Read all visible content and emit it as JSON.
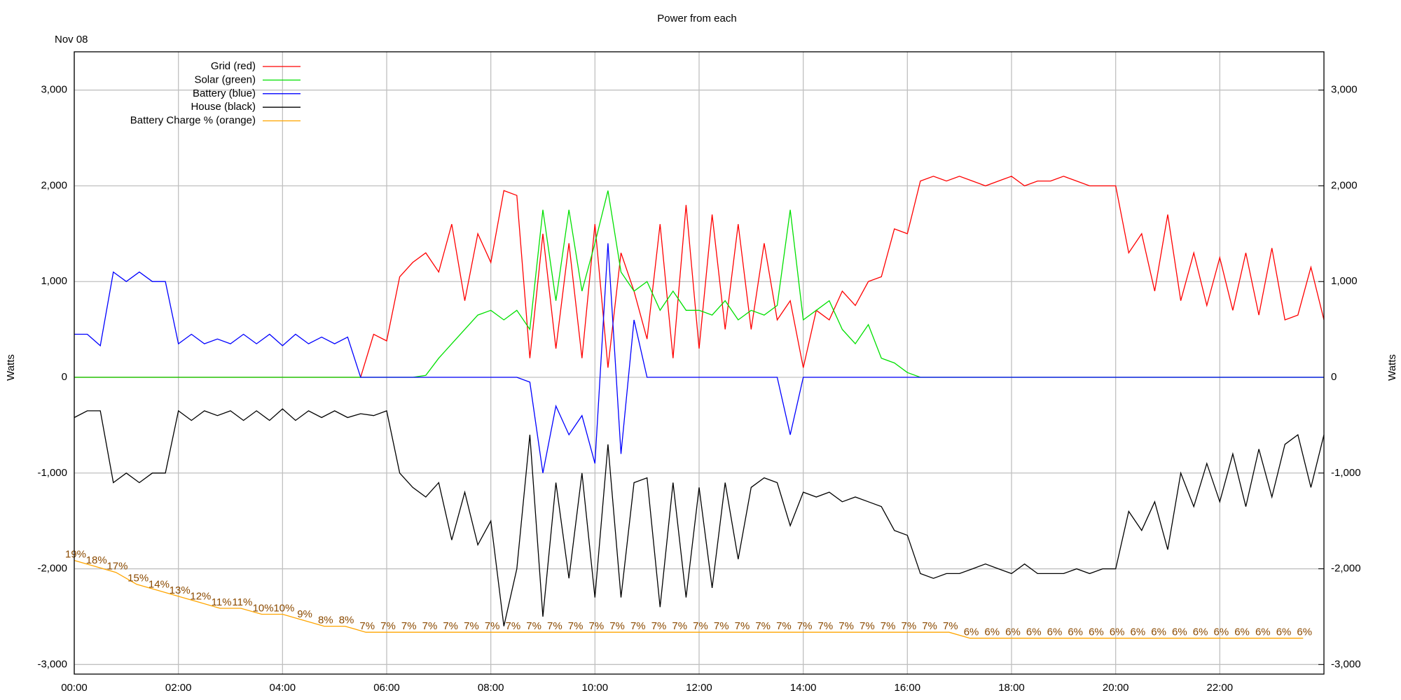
{
  "chart_data": {
    "type": "line",
    "title": "Power from each",
    "date_label": "Nov 08",
    "ylabel": "Watts",
    "y2label": "Watts",
    "legend": "top-left",
    "grid": true,
    "xlim": [
      0,
      24
    ],
    "xticks": [
      {
        "value": 0,
        "label": "00:00"
      },
      {
        "value": 2,
        "label": "02:00"
      },
      {
        "value": 4,
        "label": "04:00"
      },
      {
        "value": 6,
        "label": "06:00"
      },
      {
        "value": 8,
        "label": "08:00"
      },
      {
        "value": 10,
        "label": "10:00"
      },
      {
        "value": 12,
        "label": "12:00"
      },
      {
        "value": 14,
        "label": "14:00"
      },
      {
        "value": 16,
        "label": "16:00"
      },
      {
        "value": 18,
        "label": "18:00"
      },
      {
        "value": 20,
        "label": "20:00"
      },
      {
        "value": 22,
        "label": "22:00"
      }
    ],
    "ylim": [
      -3100,
      3400
    ],
    "yticks": [
      {
        "value": -3000,
        "label": "-3,000"
      },
      {
        "value": -2000,
        "label": "-2,000"
      },
      {
        "value": -1000,
        "label": "-1,000"
      },
      0,
      {
        "value": 1000,
        "label": "1,000"
      },
      {
        "value": 2000,
        "label": "2,000"
      },
      {
        "value": 3000,
        "label": "3,000"
      }
    ],
    "y2lim": [
      -3100,
      3400
    ],
    "y2ticks": [
      {
        "value": -3000,
        "label": "-3,000"
      },
      {
        "value": -2000,
        "label": "-2,000"
      },
      {
        "value": -1000,
        "label": "-1,000"
      },
      0,
      {
        "value": 1000,
        "label": "1,000"
      },
      {
        "value": 2000,
        "label": "2,000"
      },
      {
        "value": 3000,
        "label": "3,000"
      }
    ],
    "y3lim": [
      0,
      104
    ],
    "x": [
      0,
      0.25,
      0.5,
      0.75,
      1,
      1.25,
      1.5,
      1.75,
      2,
      2.25,
      2.5,
      2.75,
      3,
      3.25,
      3.5,
      3.75,
      4,
      4.25,
      4.5,
      4.75,
      5,
      5.25,
      5.5,
      5.75,
      6,
      6.25,
      6.5,
      6.75,
      7,
      7.25,
      7.5,
      7.75,
      8,
      8.25,
      8.5,
      8.75,
      9,
      9.25,
      9.5,
      9.75,
      10,
      10.25,
      10.5,
      10.75,
      11,
      11.25,
      11.5,
      11.75,
      12,
      12.25,
      12.5,
      12.75,
      13,
      13.25,
      13.5,
      13.75,
      14,
      14.25,
      14.5,
      14.75,
      15,
      15.25,
      15.5,
      15.75,
      16,
      16.25,
      16.5,
      16.75,
      17,
      17.25,
      17.5,
      17.75,
      18,
      18.25,
      18.5,
      18.75,
      19,
      19.25,
      19.5,
      19.75,
      20,
      20.25,
      20.5,
      20.75,
      21,
      21.25,
      21.5,
      21.75,
      22,
      22.25,
      22.5,
      22.75,
      23,
      23.25,
      23.5,
      23.75,
      24
    ],
    "series": [
      {
        "name": "Grid (red)",
        "color": "#ff0000",
        "values": [
          0,
          0,
          0,
          0,
          0,
          0,
          0,
          0,
          0,
          0,
          0,
          0,
          0,
          0,
          0,
          0,
          0,
          0,
          0,
          0,
          0,
          0,
          0,
          450,
          380,
          1050,
          1200,
          1300,
          1100,
          1600,
          800,
          1500,
          1200,
          1950,
          1900,
          200,
          1500,
          300,
          1400,
          200,
          1600,
          100,
          1300,
          900,
          400,
          1600,
          200,
          1800,
          300,
          1700,
          500,
          1600,
          500,
          1400,
          600,
          800,
          100,
          700,
          600,
          900,
          750,
          1000,
          1050,
          1550,
          1500,
          2050,
          2100,
          2050,
          2100,
          2050,
          2000,
          2050,
          2100,
          2000,
          2050,
          2050,
          2100,
          2050,
          2000,
          2000,
          2000,
          1300,
          1500,
          900,
          1700,
          800,
          1300,
          750,
          1250,
          700,
          1300,
          650,
          1350,
          600,
          650,
          1150,
          600
        ]
      },
      {
        "name": "Solar (green)",
        "color": "#00e000",
        "values": [
          0,
          0,
          0,
          0,
          0,
          0,
          0,
          0,
          0,
          0,
          0,
          0,
          0,
          0,
          0,
          0,
          0,
          0,
          0,
          0,
          0,
          0,
          0,
          0,
          0,
          0,
          0,
          20,
          200,
          350,
          500,
          650,
          700,
          600,
          700,
          500,
          1750,
          800,
          1750,
          900,
          1400,
          1950,
          1100,
          900,
          1000,
          700,
          900,
          700,
          700,
          650,
          800,
          600,
          700,
          650,
          750,
          1750,
          600,
          700,
          800,
          500,
          350,
          550,
          200,
          150,
          50,
          0,
          0,
          0,
          0,
          0,
          0,
          0,
          0,
          0,
          0,
          0,
          0,
          0,
          0,
          0,
          0,
          0,
          0,
          0,
          0,
          0,
          0,
          0,
          0,
          0,
          0,
          0,
          0,
          0,
          0,
          0,
          0
        ]
      },
      {
        "name": "Battery (blue)",
        "color": "#0000ff",
        "values": [
          450,
          450,
          330,
          1100,
          1000,
          1100,
          1000,
          1000,
          350,
          450,
          350,
          400,
          350,
          450,
          350,
          450,
          330,
          450,
          350,
          420,
          350,
          420,
          0,
          0,
          0,
          0,
          0,
          0,
          0,
          0,
          0,
          0,
          0,
          0,
          0,
          -50,
          -1000,
          -300,
          -600,
          -400,
          -900,
          1400,
          -800,
          600,
          0,
          0,
          0,
          0,
          0,
          0,
          0,
          0,
          0,
          0,
          0,
          -600,
          0,
          0,
          0,
          0,
          0,
          0,
          0,
          0,
          0,
          0,
          0,
          0,
          0,
          0,
          0,
          0,
          0,
          0,
          0,
          0,
          0,
          0,
          0,
          0,
          0,
          0,
          0,
          0,
          0,
          0,
          0,
          0,
          0,
          0,
          0,
          0,
          0,
          0,
          0,
          0,
          0
        ]
      },
      {
        "name": "House (black)",
        "color": "#000000",
        "values": [
          -420,
          -350,
          -350,
          -1100,
          -1000,
          -1100,
          -1000,
          -1000,
          -350,
          -450,
          -350,
          -400,
          -350,
          -450,
          -350,
          -450,
          -330,
          -450,
          -350,
          -420,
          -350,
          -420,
          -380,
          -400,
          -350,
          -1000,
          -1150,
          -1250,
          -1100,
          -1700,
          -1200,
          -1750,
          -1500,
          -2600,
          -2000,
          -600,
          -2500,
          -1100,
          -2100,
          -1000,
          -2300,
          -700,
          -2300,
          -1100,
          -1050,
          -2400,
          -1100,
          -2300,
          -1150,
          -2200,
          -1100,
          -1900,
          -1150,
          -1050,
          -1100,
          -1550,
          -1200,
          -1250,
          -1200,
          -1300,
          -1250,
          -1300,
          -1350,
          -1600,
          -1650,
          -2050,
          -2100,
          -2050,
          -2050,
          -2000,
          -1950,
          -2000,
          -2050,
          -1950,
          -2050,
          -2050,
          -2050,
          -2000,
          -2050,
          -2000,
          -2000,
          -1400,
          -1600,
          -1300,
          -1800,
          -1000,
          -1350,
          -900,
          -1300,
          -800,
          -1350,
          -750,
          -1250,
          -700,
          -600,
          -1150,
          -600
        ]
      },
      {
        "name": "Battery Charge % (orange)",
        "color": "#ffa500",
        "axis": "y3",
        "x": [
          0,
          0.4,
          0.8,
          1.2,
          1.6,
          2,
          2.4,
          2.8,
          3.2,
          3.6,
          4,
          4.4,
          4.8,
          5.2,
          5.6,
          6,
          6.4,
          6.8,
          7.2,
          7.6,
          8,
          8.4,
          8.8,
          9.2,
          9.6,
          10,
          10.4,
          10.8,
          11.2,
          11.6,
          12,
          12.4,
          12.8,
          13.2,
          13.6,
          14,
          14.4,
          14.8,
          15.2,
          15.6,
          16,
          16.4,
          16.8,
          17.2,
          17.6,
          18,
          18.4,
          18.8,
          19.2,
          19.6,
          20,
          20.4,
          20.8,
          21.2,
          21.6,
          22,
          22.4,
          22.8,
          23.2,
          23.6
        ],
        "values": [
          19,
          18,
          17,
          15,
          14,
          13,
          12,
          11,
          11,
          10,
          10,
          9,
          8,
          8,
          7,
          7,
          7,
          7,
          7,
          7,
          7,
          7,
          7,
          7,
          7,
          7,
          7,
          7,
          7,
          7,
          7,
          7,
          7,
          7,
          7,
          7,
          7,
          7,
          7,
          7,
          7,
          7,
          7,
          6,
          6,
          6,
          6,
          6,
          6,
          6,
          6,
          6,
          6,
          6,
          6,
          6,
          6,
          6,
          6,
          6
        ],
        "value_labels": [
          "19%",
          "18%",
          "17%",
          "15%",
          "14%",
          "13%",
          "12%",
          "11%",
          "11%",
          "10%",
          "10%",
          "9%",
          "8%",
          "8%",
          "7%",
          "7%",
          "7%",
          "7%",
          "7%",
          "7%",
          "7%",
          "7%",
          "7%",
          "7%",
          "7%",
          "7%",
          "7%",
          "7%",
          "7%",
          "7%",
          "7%",
          "7%",
          "7%",
          "7%",
          "7%",
          "7%",
          "7%",
          "7%",
          "7%",
          "7%",
          "7%",
          "7%",
          "7%",
          "6%",
          "6%",
          "6%",
          "6%",
          "6%",
          "6%",
          "6%",
          "6%",
          "6%",
          "6%",
          "6%",
          "6%",
          "6%",
          "6%",
          "6%",
          "6%",
          "6%"
        ]
      }
    ]
  }
}
